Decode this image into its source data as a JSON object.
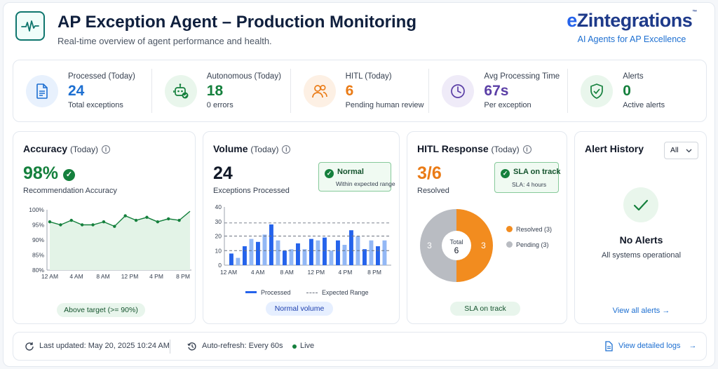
{
  "header": {
    "title": "AP Exception Agent – Production Monitoring",
    "subtitle": "Real-time overview of agent performance and health.",
    "icon": "pulse-icon",
    "brand": {
      "name_prefix": "e",
      "name_rest": "Zintegrations",
      "trademark": "™",
      "tagline": "AI Agents for AP Excellence"
    }
  },
  "kpis": [
    {
      "label": "Processed (Today)",
      "value": "24",
      "sub": "Total exceptions",
      "icon": "document-icon",
      "color": "#1d6fd1",
      "bg": "#e8f1fd"
    },
    {
      "label": "Autonomous (Today)",
      "value": "18",
      "sub": "0 errors",
      "icon": "robot-icon",
      "color": "#15803d",
      "bg": "#e9f6ec"
    },
    {
      "label": "HITL (Today)",
      "value": "6",
      "sub": "Pending human review",
      "icon": "users-icon",
      "color": "#ea7b16",
      "bg": "#fdf0e4"
    },
    {
      "label": "Avg Processing Time",
      "value": "67s",
      "sub": "Per exception",
      "icon": "clock-icon",
      "color": "#5b3fa6",
      "bg": "#efebf8"
    },
    {
      "label": "Alerts",
      "value": "0",
      "sub": "Active alerts",
      "icon": "shield-check-icon",
      "color": "#15803d",
      "bg": "#e9f6ec"
    }
  ],
  "accuracy": {
    "title": "Accuracy",
    "title_suffix": "(Today)",
    "value": "98%",
    "sub": "Recommendation Accuracy",
    "badge": "Above target (>= 90%)",
    "color": "#15803d"
  },
  "volume": {
    "title": "Volume",
    "title_suffix": "(Today)",
    "value": "24",
    "sub": "Exceptions Processed",
    "status_title": "Normal",
    "status_sub": "Within expected range",
    "badge": "Normal volume",
    "legend_processed": "Processed",
    "legend_expected": "Expected Range"
  },
  "hitl": {
    "title": "HITL Response",
    "title_suffix": "(Today)",
    "value": "3/6",
    "sub": "Resolved",
    "status_title": "SLA on track",
    "status_sub": "SLA: 4 hours",
    "center_label": "Total",
    "center_value": "6",
    "slice_resolved_label": "3",
    "slice_pending_label": "3",
    "legend_resolved": "Resolved (3)",
    "legend_pending": "Pending (3)",
    "badge": "SLA on track"
  },
  "alerts": {
    "title": "Alert History",
    "filter_value": "All",
    "empty_title": "No Alerts",
    "empty_sub": "All systems operational",
    "link": "View all alerts →"
  },
  "footer": {
    "last_updated": "Last updated: May 20, 2025 10:24 AM",
    "auto_refresh": "Auto-refresh: Every 60s",
    "live": "Live",
    "logs_link": "View detailed logs"
  },
  "chart_data": [
    {
      "type": "area",
      "x_ticks": [
        "12 AM",
        "4 AM",
        "8 AM",
        "12 PM",
        "4 PM",
        "8 PM"
      ],
      "y_ticks": [
        "100%",
        "95%",
        "90%",
        "85%",
        "80%"
      ],
      "ylim": [
        80,
        100
      ],
      "values": [
        96,
        95,
        96.5,
        95,
        95,
        96,
        94.5,
        98,
        96.5,
        97.5,
        96,
        97,
        96.5,
        99.5
      ],
      "color": "#15803d"
    },
    {
      "type": "bar",
      "x_ticks": [
        "12 AM",
        "4 AM",
        "8 AM",
        "12 PM",
        "4 PM",
        "8 PM"
      ],
      "y_ticks": [
        "40",
        "30",
        "20",
        "10",
        "0"
      ],
      "ylim": [
        0,
        40
      ],
      "values": [
        8,
        5,
        13,
        18,
        16,
        21,
        28,
        17,
        10,
        11,
        15,
        11,
        18,
        17,
        19,
        10,
        17,
        14,
        24,
        20,
        11,
        17,
        13,
        17
      ],
      "expected_range": [
        10,
        20,
        29
      ],
      "color": "#2563eb"
    },
    {
      "type": "pie",
      "labels": [
        "Resolved",
        "Pending"
      ],
      "values": [
        3,
        3
      ],
      "colors": [
        "#f28c1f",
        "#b9bcc2"
      ]
    }
  ]
}
